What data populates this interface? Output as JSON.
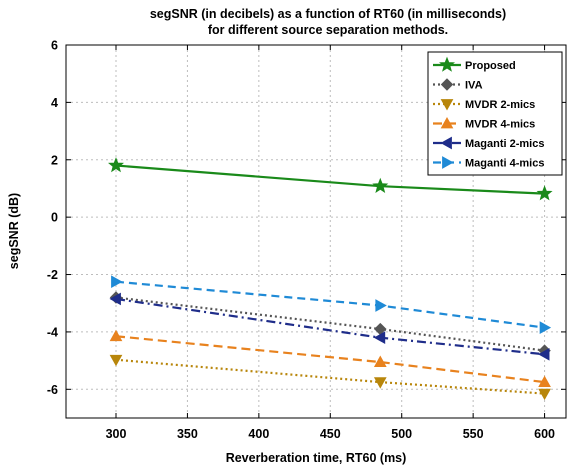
{
  "chart_data": {
    "type": "line",
    "title_lines": [
      "segSNR (in decibels) as a function of RT60 (in milliseconds)",
      "for different source separation methods."
    ],
    "xlabel": "Reverberation time, RT60 (ms)",
    "ylabel": "segSNR (dB)",
    "xlim": [
      265,
      615
    ],
    "ylim": [
      -7,
      6
    ],
    "xticks": [
      300,
      350,
      400,
      450,
      500,
      550,
      600
    ],
    "yticks": [
      6,
      4,
      2,
      0,
      -2,
      -4,
      -6
    ],
    "grid": true,
    "legend_position": "top-right",
    "x": [
      300,
      485,
      600
    ],
    "series": [
      {
        "name": "Proposed",
        "values": [
          1.8,
          1.08,
          0.82
        ],
        "color": "#1a8a1a",
        "dash": "",
        "marker": "star"
      },
      {
        "name": "IVA",
        "values": [
          -2.8,
          -3.9,
          -4.65
        ],
        "color": "#555555",
        "dash": "2 3",
        "marker": "diamond"
      },
      {
        "name": "MVDR 2-mics",
        "values": [
          -4.97,
          -5.75,
          -6.15
        ],
        "color": "#b8860b",
        "dash": "2 3",
        "marker": "triangle-down"
      },
      {
        "name": "MVDR 4-mics",
        "values": [
          -4.15,
          -5.05,
          -5.75
        ],
        "color": "#e8821e",
        "dash": "9 5",
        "marker": "triangle-up"
      },
      {
        "name": "Maganti 2-mics",
        "values": [
          -2.85,
          -4.2,
          -4.78
        ],
        "color": "#1f2d8a",
        "dash": "9 4 2 4",
        "marker": "triangle-left"
      },
      {
        "name": "Maganti 4-mics",
        "values": [
          -2.25,
          -3.08,
          -3.85
        ],
        "color": "#1f8ad6",
        "dash": "8 5",
        "marker": "triangle-right"
      }
    ]
  }
}
